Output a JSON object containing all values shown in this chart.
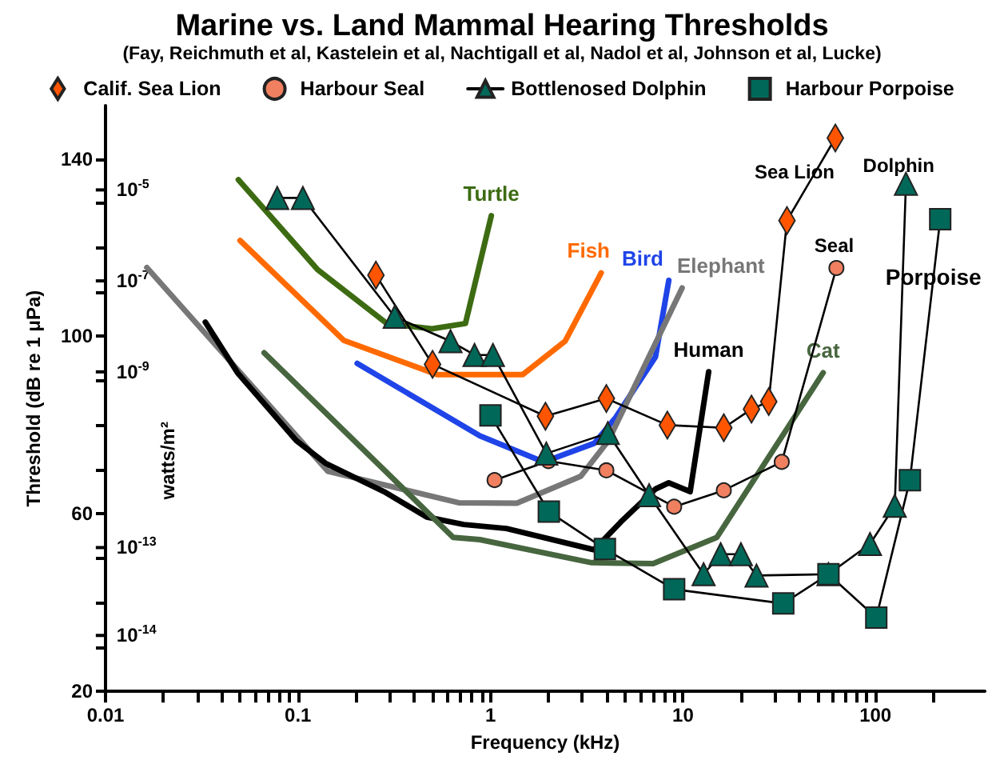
{
  "chart_data": {
    "type": "line",
    "title": "Marine vs. Land Mammal Hearing Thresholds",
    "subtitle": "(Fay, Reichmuth et al, Kastelein et al, Nachtigall et al, Nadol et al, Johnson et al, Lucke)",
    "xlabel": "Frequency (kHz)",
    "ylabel": "Threshold (dB re 1 μPa)",
    "log": "x",
    "legend": "top",
    "grid": false,
    "xlim": [
      0.01,
      370
    ],
    "ylim": [
      20,
      152
    ],
    "xticks": [
      0.01,
      {
        "value": 0.02,
        "label": null
      },
      {
        "value": 0.03,
        "label": null
      },
      {
        "value": 0.04,
        "label": null
      },
      {
        "value": 0.05,
        "label": null
      },
      {
        "value": 0.06,
        "label": null
      },
      {
        "value": 0.07,
        "label": null
      },
      {
        "value": 0.08,
        "label": null
      },
      {
        "value": 0.09,
        "label": null
      },
      0.1,
      {
        "value": 0.2,
        "label": null
      },
      {
        "value": 0.3,
        "label": null
      },
      {
        "value": 0.4,
        "label": null
      },
      {
        "value": 0.5,
        "label": null
      },
      {
        "value": 0.6,
        "label": null
      },
      {
        "value": 0.7,
        "label": null
      },
      {
        "value": 0.8,
        "label": null
      },
      {
        "value": 0.9,
        "label": null
      },
      1,
      {
        "value": 2,
        "label": null
      },
      {
        "value": 3,
        "label": null
      },
      {
        "value": 4,
        "label": null
      },
      {
        "value": 5,
        "label": null
      },
      {
        "value": 6,
        "label": null
      },
      {
        "value": 7,
        "label": null
      },
      {
        "value": 8,
        "label": null
      },
      {
        "value": 9,
        "label": null
      },
      10,
      {
        "value": 20,
        "label": null
      },
      {
        "value": 30,
        "label": null
      },
      {
        "value": 40,
        "label": null
      },
      {
        "value": 50,
        "label": null
      },
      {
        "value": 60,
        "label": null
      },
      {
        "value": 70,
        "label": null
      },
      {
        "value": 80,
        "label": null
      },
      {
        "value": 90,
        "label": null
      },
      100,
      {
        "value": 200,
        "label": null
      }
    ],
    "yticks": [
      20,
      {
        "value": 30,
        "label": null
      },
      {
        "value": 40,
        "label": null
      },
      {
        "value": 50,
        "label": null
      },
      60,
      {
        "value": 70,
        "label": null
      },
      {
        "value": 80,
        "label": null
      },
      {
        "value": 90,
        "label": null
      },
      100,
      {
        "value": 110,
        "label": null
      },
      {
        "value": 120,
        "label": null
      },
      {
        "value": 130,
        "label": null
      },
      140
    ],
    "series": [
      {
        "name": "Turtle",
        "color": "#3d6b12",
        "x": [
          0.049,
          0.126,
          0.289,
          0.496,
          0.741,
          1.01
        ],
        "values": [
          135.3,
          115.1,
          102.9,
          101.7,
          102.9,
          127.2
        ]
      },
      {
        "name": "Fish",
        "color": "#ff6a00",
        "x": [
          0.05,
          0.173,
          0.528,
          1.47,
          2.44,
          3.76
        ],
        "values": [
          121.6,
          99.1,
          91.4,
          91.4,
          98.9,
          114.3
        ]
      },
      {
        "name": "Bird",
        "color": "#1f44e8",
        "x": [
          0.203,
          0.88,
          1.89,
          3.46,
          4.47,
          7.2,
          8.44
        ],
        "values": [
          93.9,
          77.6,
          71.7,
          75.9,
          81.7,
          95.4,
          112.6
        ]
      },
      {
        "name": "Elephant",
        "color": "#777777",
        "x": [
          0.0164,
          0.143,
          0.683,
          1.37,
          2.95,
          4.1,
          9.9
        ],
        "values": [
          115.5,
          69.6,
          62.5,
          62.4,
          68.5,
          76.5,
          110.9
        ]
      },
      {
        "name": "Human",
        "color": "#000000",
        "x": [
          0.033,
          0.0485,
          0.098,
          0.139,
          0.28,
          0.466,
          0.726,
          1.21,
          3.46,
          4.76,
          7.2,
          8.44,
          10.9,
          13.6
        ],
        "values": [
          103.2,
          91.8,
          76.5,
          71.4,
          65,
          59.3,
          57.6,
          56.7,
          51.9,
          58.2,
          65.6,
          67,
          65,
          92
        ]
      },
      {
        "name": "Cat",
        "color": "#47663f",
        "x": [
          0.0667,
          0.64,
          0.88,
          3.35,
          7,
          15,
          53.5
        ],
        "values": [
          96.3,
          54.7,
          54.2,
          49,
          48.8,
          54.7,
          91.8
        ]
      },
      {
        "name": "Calif. Sea Lion",
        "color": "#ff5500",
        "marker": "diamond",
        "x": [
          0.254,
          0.5,
          1.93,
          4,
          8.3,
          16.3,
          22.7,
          27.9,
          34.7,
          61.9
        ],
        "values": [
          113.8,
          93.7,
          82,
          86,
          80,
          79.4,
          83.6,
          85.3,
          126.1,
          144.7
        ]
      },
      {
        "name": "Harbour Seal",
        "color": "#f08060",
        "marker": "circle",
        "x": [
          1.05,
          2,
          4,
          9,
          16.3,
          32.6,
          62.7
        ],
        "values": [
          67.6,
          71.9,
          69.8,
          61.6,
          65.3,
          71.7,
          115.4
        ]
      },
      {
        "name": "Bottlenosed Dolphin",
        "color": "#006858",
        "marker": "triangle",
        "x": [
          0.078,
          0.106,
          0.318,
          0.62,
          0.826,
          1.03,
          1.95,
          4.07,
          6.67,
          12.8,
          15.7,
          20,
          24.1,
          57,
          93.7,
          126,
          144
        ],
        "values": [
          131.2,
          131.2,
          104.4,
          98.9,
          95.8,
          95.8,
          73.6,
          78.2,
          64.2,
          46.4,
          50.9,
          50.9,
          46.1,
          46.4,
          53.2,
          61.8,
          134.4
        ]
      },
      {
        "name": "Harbour Porpoise",
        "color": "#006858",
        "marker": "square",
        "x": [
          1,
          2.01,
          3.93,
          9,
          33.2,
          57,
          101,
          151,
          217
        ],
        "values": [
          82.2,
          60.5,
          52.1,
          43,
          39.8,
          46.4,
          36.6,
          67.6,
          126.4
        ]
      }
    ],
    "annotations": [
      "Sea Lion",
      "Seal",
      "Dolphin",
      "Porpoise",
      "watts/m²",
      "10$^{-5}$",
      "10$^{-7}$",
      "10$^{-9}$",
      "10$^{-13}$",
      "10$^{-14}$"
    ]
  }
}
